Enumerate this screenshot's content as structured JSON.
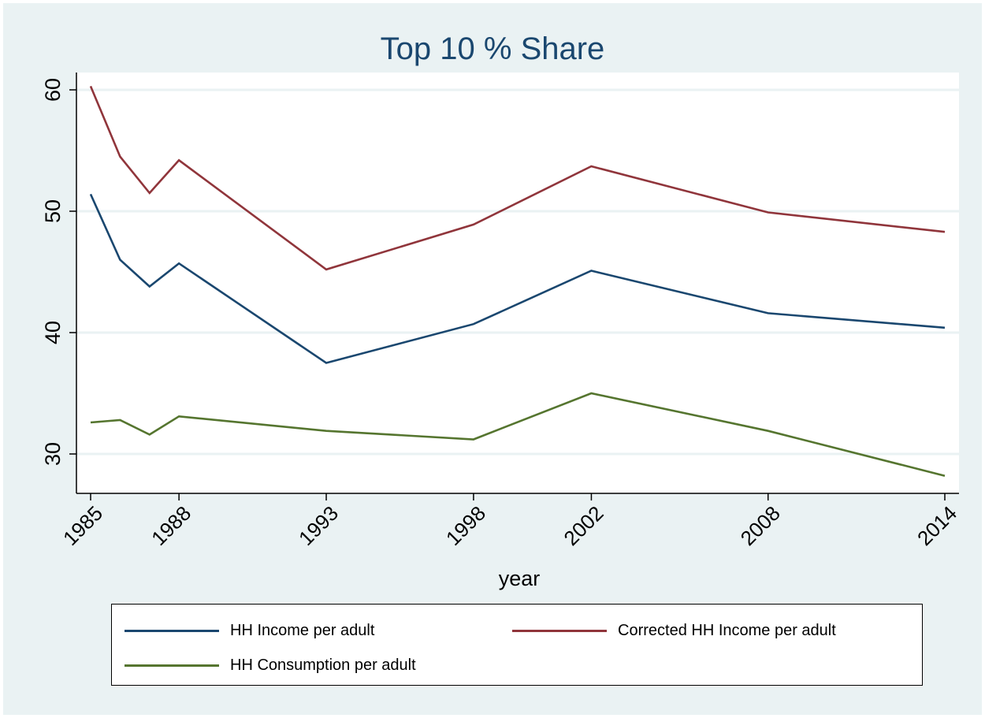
{
  "chart_data": {
    "type": "line",
    "title": "Top 10 % Share",
    "xlabel": "year",
    "ylabel": "",
    "x": [
      1985,
      1986,
      1987,
      1988,
      1993,
      1998,
      2002,
      2008,
      2014
    ],
    "xticks": [
      "1985",
      "1988",
      "1993",
      "1998",
      "2002",
      "2008",
      "2014"
    ],
    "yticks": [
      "30",
      "40",
      "50",
      "60"
    ],
    "ylim": [
      27,
      61.5
    ],
    "grid": true,
    "legend_position": "bottom",
    "series": [
      {
        "name": "HH Income per adult",
        "color": "#1a476f",
        "values": [
          51.4,
          46.0,
          43.8,
          45.7,
          37.5,
          40.7,
          45.1,
          41.6,
          40.4
        ]
      },
      {
        "name": "Corrected HH Income per adult",
        "color": "#90353b",
        "values": [
          60.3,
          54.5,
          51.5,
          54.2,
          45.2,
          48.9,
          53.7,
          49.9,
          48.3
        ]
      },
      {
        "name": "HH Consumption per adult",
        "color": "#55752f",
        "values": [
          32.6,
          32.8,
          31.6,
          33.1,
          31.9,
          31.2,
          35.0,
          31.9,
          28.2
        ]
      }
    ]
  }
}
